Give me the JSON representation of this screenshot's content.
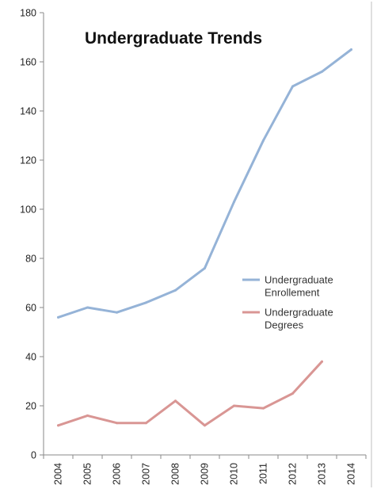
{
  "chart_data": {
    "type": "line",
    "title": "Undergraduate Trends",
    "xlabel": "",
    "ylabel": "",
    "categories": [
      "2004",
      "2005",
      "2006",
      "2007",
      "2008",
      "2009",
      "2010",
      "2011",
      "2012",
      "2013",
      "2014"
    ],
    "ylim": [
      0,
      180
    ],
    "yticks": [
      "0",
      "20",
      "40",
      "60",
      "80",
      "100",
      "120",
      "140",
      "160",
      "180"
    ],
    "grid": false,
    "legend_position": "right",
    "series": [
      {
        "name": "Undergraduate Enrollement",
        "legend_lines": [
          "Undergraduate",
          "Enrollement"
        ],
        "color": "#95b3d7",
        "values": [
          56,
          60,
          58,
          62,
          67,
          76,
          103,
          128,
          150,
          156,
          165
        ]
      },
      {
        "name": "Undergraduate Degrees",
        "legend_lines": [
          "Undergraduate",
          "Degrees"
        ],
        "color": "#d99694",
        "values": [
          12,
          16,
          13,
          13,
          22,
          12,
          20,
          19,
          25,
          38,
          null
        ]
      }
    ]
  }
}
